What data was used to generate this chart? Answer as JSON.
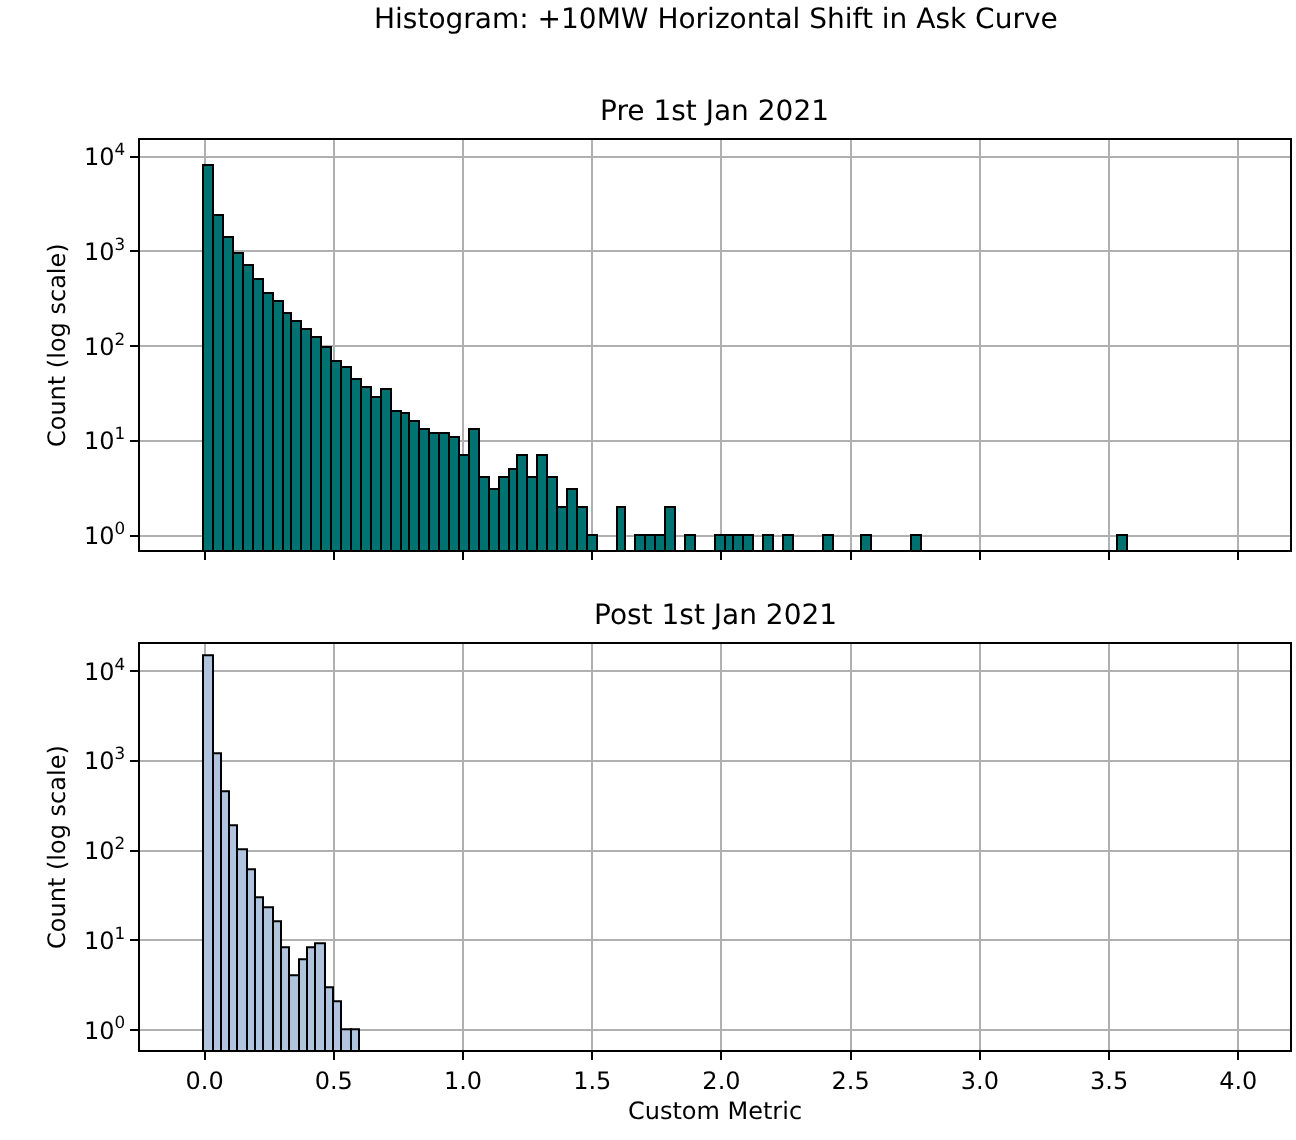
{
  "chart_data": [
    {
      "type": "histogram",
      "title": "Histogram: +10MW Horizontal Shift in Ask Curve",
      "subtitle": "Pre 1st Jan 2021",
      "ylabel": "Count (log scale)",
      "color": "#007272",
      "log": true,
      "grid": true,
      "tick_labels": "y",
      "bins": [
        0,
        0.038,
        0.076,
        0.114,
        0.152,
        0.19,
        0.228,
        0.266,
        0.304,
        0.342,
        0.38,
        0.418,
        0.456,
        0.494,
        0.532,
        0.57,
        0.608,
        0.646,
        0.684,
        0.722,
        0.76,
        0.798,
        0.836,
        0.874,
        0.912,
        0.95,
        0.988,
        1.026,
        1.064,
        1.102,
        1.14,
        1.178,
        1.216,
        1.254,
        1.292,
        1.33,
        1.368,
        1.406,
        1.444,
        1.482,
        1.52,
        1.558,
        1.596,
        1.634,
        1.672,
        1.71,
        1.748,
        1.786,
        1.824,
        1.862,
        1.9,
        1.938,
        1.976,
        2.014,
        2.052,
        2.09,
        2.128,
        2.166,
        2.204,
        2.242,
        2.28,
        2.318,
        2.356,
        2.394,
        2.432,
        2.47,
        2.508,
        2.546,
        2.584,
        2.622,
        2.66,
        2.698,
        2.736,
        2.774,
        2.812,
        2.85,
        2.888,
        2.926,
        2.964,
        3.002,
        3.04,
        3.078,
        3.116,
        3.154,
        3.192,
        3.23,
        3.268,
        3.306,
        3.344,
        3.382,
        3.42,
        3.458,
        3.496,
        3.534,
        3.572
      ],
      "values": [
        8000,
        2400,
        1400,
        950,
        700,
        500,
        360,
        290,
        220,
        180,
        145,
        120,
        95,
        68,
        58,
        43,
        36,
        29,
        35,
        20,
        19,
        16,
        13,
        12,
        12,
        11,
        7,
        13,
        4,
        3,
        4,
        5,
        7,
        4,
        7,
        4,
        2,
        3,
        2,
        1,
        null,
        null,
        2,
        null,
        1,
        1,
        1,
        2,
        null,
        1,
        null,
        null,
        1,
        1,
        1,
        1,
        null,
        1,
        null,
        1,
        null,
        null,
        null,
        1,
        null,
        null,
        null,
        1,
        null,
        null,
        null,
        null,
        1,
        null,
        null,
        null,
        null,
        null,
        null,
        null,
        null,
        null,
        null,
        null,
        null,
        null,
        null,
        null,
        null,
        null,
        null,
        null,
        null,
        1
      ],
      "xlim": [
        -0.25,
        4.2
      ],
      "xticks": [
        {
          "value": 0,
          "label": null
        },
        {
          "value": 0.5,
          "label": null
        },
        {
          "value": 1,
          "label": null
        },
        {
          "value": 1.5,
          "label": null
        },
        {
          "value": 2,
          "label": null
        },
        {
          "value": 2.5,
          "label": null
        },
        {
          "value": 3,
          "label": null
        },
        {
          "value": 3.5,
          "label": null
        },
        {
          "value": 4,
          "label": null
        }
      ],
      "ylim": [
        0.7,
        15000
      ],
      "yticks": [
        {
          "value": 1,
          "label": "10$^{0}$"
        },
        {
          "value": 10,
          "label": "10$^{1}$"
        },
        {
          "value": 100,
          "label": "10$^{2}$"
        },
        {
          "value": 1000,
          "label": "10$^{3}$"
        },
        {
          "value": 10000,
          "label": "10$^{4}$"
        }
      ]
    },
    {
      "type": "histogram",
      "title": "Post 1st Jan 2021",
      "xlabel": "Custom Metric",
      "ylabel": "Count (log scale)",
      "color": "#b0c4de",
      "log": true,
      "grid": true,
      "bins": [
        0,
        0.033,
        0.067,
        0.1,
        0.133,
        0.167,
        0.2,
        0.233,
        0.267,
        0.3,
        0.333,
        0.367,
        0.4,
        0.433,
        0.467,
        0.5,
        0.533,
        0.567,
        0.6
      ],
      "values": [
        15000,
        1200,
        450,
        190,
        100,
        62,
        29,
        23,
        16,
        8,
        4,
        6,
        8,
        9,
        3,
        2,
        1,
        1
      ],
      "xlim": [
        -0.25,
        4.2
      ],
      "xticks": [
        {
          "value": 0,
          "label": "0.0"
        },
        {
          "value": 0.5,
          "label": "0.5"
        },
        {
          "value": 1,
          "label": "1.0"
        },
        {
          "value": 1.5,
          "label": "1.5"
        },
        {
          "value": 2,
          "label": "2.0"
        },
        {
          "value": 2.5,
          "label": "2.5"
        },
        {
          "value": 3,
          "label": "3.0"
        },
        {
          "value": 3.5,
          "label": "3.5"
        },
        {
          "value": 4,
          "label": "4.0"
        }
      ],
      "ylim": [
        0.6,
        20000
      ],
      "yticks": [
        {
          "value": 1,
          "label": "10$^{0}$"
        },
        {
          "value": 10,
          "label": "10$^{1}$"
        },
        {
          "value": 100,
          "label": "10$^{2}$"
        },
        {
          "value": 1000,
          "label": "10$^{3}$"
        },
        {
          "value": 10000,
          "label": "10$^{4}$"
        }
      ]
    }
  ]
}
